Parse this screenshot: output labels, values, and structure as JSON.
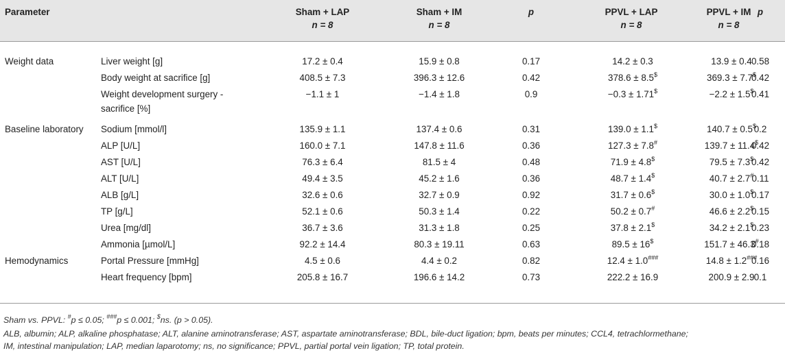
{
  "header": {
    "parameter": "Parameter",
    "cols": [
      {
        "line1": "Sham + LAP",
        "line2": "n = 8"
      },
      {
        "line1": "Sham + IM",
        "line2": "n = 8"
      },
      {
        "line1": "p",
        "line2": ""
      },
      {
        "line1": "PPVL + LAP",
        "line2": "n = 8"
      },
      {
        "line1": "PPVL + IM",
        "line2": "n = 8"
      },
      {
        "line1": "p",
        "line2": ""
      }
    ]
  },
  "rows": [
    {
      "group": "Weight data",
      "param": "Liver weight [g]",
      "v": [
        "17.2 ± 0.4",
        "15.9 ± 0.8",
        "0.17",
        "14.2 ± 0.3",
        "13.9 ± 0.4",
        "0.58"
      ],
      "sup": [
        "",
        "",
        "",
        "",
        "",
        ""
      ]
    },
    {
      "group": "",
      "param": "Body weight at sacrifice [g]",
      "v": [
        "408.5 ± 7.3",
        "396.3 ± 12.6",
        "0.42",
        "378.6 ± 8.5",
        "369.3 ± 7.7",
        "0.42"
      ],
      "sup": [
        "",
        "",
        "",
        "$",
        "$",
        ""
      ]
    },
    {
      "group": "",
      "param": "Weight development surgery -",
      "param2": "sacrifice [%]",
      "v": [
        "−1.1 ± 1",
        "−1.4 ± 1.8",
        "0.9",
        "−0.3 ± 1.71",
        "−2.2 ± 1.5",
        "0.41"
      ],
      "sup": [
        "",
        "",
        "",
        "$",
        "$",
        ""
      ]
    },
    {
      "group": "Baseline laboratory",
      "param": "Sodium [mmol/l]",
      "v": [
        "135.9 ± 1.1",
        "137.4 ± 0.6",
        "0.31",
        "139.0 ± 1.1",
        "140.7 ± 0.5",
        "0.2"
      ],
      "sup": [
        "",
        "",
        "",
        "$",
        "$",
        ""
      ]
    },
    {
      "group": "",
      "param": "ALP [U/L]",
      "v": [
        "160.0 ± 7.1",
        "147.8 ± 11.6",
        "0.36",
        "127.3 ± 7.8",
        "139.7 ± 11.4",
        "0.42"
      ],
      "sup": [
        "",
        "",
        "",
        "#",
        "$",
        ""
      ]
    },
    {
      "group": "",
      "param": "AST [U/L]",
      "v": [
        "76.3 ± 6.4",
        "81.5 ± 4",
        "0.48",
        "71.9 ± 4.8",
        "79.5 ± 7.3",
        "0.42"
      ],
      "sup": [
        "",
        "",
        "",
        "$",
        "$",
        ""
      ]
    },
    {
      "group": "",
      "param": "ALT [U/L]",
      "v": [
        "49.4 ± 3.5",
        "45.2 ± 1.6",
        "0.36",
        "48.7 ± 1.4",
        "40.7 ± 2.7",
        "0.11"
      ],
      "sup": [
        "",
        "",
        "",
        "$",
        "#",
        ""
      ]
    },
    {
      "group": "",
      "param": "ALB [g/L]",
      "v": [
        "32.6 ± 0.6",
        "32.7 ± 0.9",
        "0.92",
        "31.7 ± 0.6",
        "30.0 ± 1.0",
        "0.17"
      ],
      "sup": [
        "",
        "",
        "",
        "$",
        "$",
        ""
      ]
    },
    {
      "group": "",
      "param": "TP [g/L]",
      "v": [
        "52.1 ± 0.6",
        "50.3 ± 1.4",
        "0.22",
        "50.2 ± 0.7",
        "46.6 ± 2.2",
        "0.15"
      ],
      "sup": [
        "",
        "",
        "",
        "#",
        "$",
        ""
      ]
    },
    {
      "group": "",
      "param": "Urea [mg/dl]",
      "v": [
        "36.7 ± 3.6",
        "31.3 ± 1.8",
        "0.25",
        "37.8 ± 2.1",
        "34.2 ± 2.1",
        "0.23"
      ],
      "sup": [
        "",
        "",
        "",
        "$",
        "$",
        ""
      ]
    },
    {
      "group": "",
      "param": "Ammonia [µmol/L]",
      "v": [
        "92.2 ± 14.4",
        "80.3 ± 19.11",
        "0.63",
        "89.5 ± 16",
        "151.7 ± 46.3",
        "0.18"
      ],
      "sup": [
        "",
        "",
        "",
        "$",
        "#",
        ""
      ]
    },
    {
      "group": "Hemodynamics",
      "param": "Portal Pressure [mmHg]",
      "v": [
        "4.5 ± 0.6",
        "4.4 ± 0.2",
        "0.82",
        "12.4 ± 1.0",
        "14.8 ± 1.2",
        "0.16"
      ],
      "sup": [
        "",
        "",
        "",
        "###",
        "###",
        ""
      ]
    },
    {
      "group": "",
      "param": "Heart frequency [bpm]",
      "v": [
        "205.8 ± 16.7",
        "196.6 ± 14.2",
        "0.73",
        "222.2 ± 16.9",
        "200.9 ± 2.9",
        "0.1"
      ],
      "sup": [
        "",
        "",
        "",
        "",
        "",
        ""
      ]
    }
  ],
  "footnote": {
    "sig_prefix": "Sham vs. PPVL: ",
    "sig_mark1": "#",
    "sig_text1": "p ≤ 0.05; ",
    "sig_mark2": "###",
    "sig_text2": "p ≤ 0.001; ",
    "sig_mark3": "$",
    "sig_text3": "ns. (p > 0.05).",
    "abbrev_line1": "ALB, albumin; ALP, alkaline phosphatase; ALT, alanine aminotransferase; AST, aspartate aminotransferase; BDL, bile-duct ligation; bpm, beats per minutes; CCL4, tetrachlormethane;",
    "abbrev_line2": "IM, intestinal manipulation; LAP, median laparotomy; ns, no significance; PPVL, partial portal vein ligation; TP, total protein."
  }
}
